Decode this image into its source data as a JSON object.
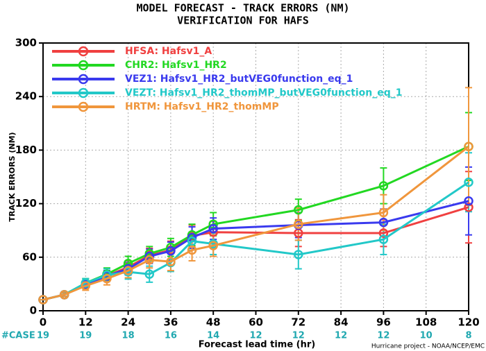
{
  "chart_data": {
    "type": "line",
    "title": "MODEL FORECAST - TRACK ERRORS (NM)",
    "subtitle": "VERIFICATION FOR HAFS",
    "x_label": "Forecast lead time (hr)",
    "y_label": "TRACK ERRORS (NM)",
    "footer": "Hurricane project - NOAA/NCEP/EMC",
    "x": [
      0,
      6,
      12,
      18,
      24,
      30,
      36,
      42,
      48,
      72,
      96,
      120
    ],
    "xlim": [
      0,
      120
    ],
    "xticks": [
      0,
      12,
      24,
      36,
      48,
      60,
      72,
      84,
      96,
      108,
      120
    ],
    "ylim": [
      0,
      300
    ],
    "yticks": [
      0,
      60,
      120,
      180,
      240,
      300
    ],
    "grid": true,
    "legend": "upper left",
    "cases": {
      "label": "#CASE",
      "color": "#20a8b0",
      "x": [
        0,
        12,
        24,
        36,
        48,
        60,
        72,
        84,
        96,
        108,
        120
      ],
      "values": [
        19,
        19,
        18,
        16,
        14,
        12,
        12,
        12,
        12,
        10,
        8
      ]
    },
    "series": [
      {
        "name": "HFSA: Hafsv1_A",
        "color": "#f04040",
        "values": [
          12.4,
          18,
          29.5,
          39,
          49,
          62,
          68,
          84,
          88,
          87,
          87,
          116
        ],
        "errors": [
          0,
          2,
          4,
          6,
          7,
          8,
          10,
          12,
          12,
          15,
          15,
          40
        ]
      },
      {
        "name": "CHR2: Hafsv1_HR2",
        "color": "#22d822",
        "values": [
          12.4,
          18,
          31,
          41,
          53,
          64,
          71,
          85,
          97,
          113,
          140,
          184
        ],
        "errors": [
          0,
          2,
          5,
          7,
          8,
          8,
          10,
          12,
          13,
          12,
          20,
          38
        ]
      },
      {
        "name": "VEZ1: Hafsv1_HR2_butVEG0function_eq_1",
        "color": "#3a3aee",
        "values": [
          12.4,
          18,
          29.5,
          39,
          47,
          61,
          67,
          82,
          92,
          96,
          99,
          123
        ],
        "errors": [
          0,
          2,
          4,
          6,
          7,
          8,
          10,
          12,
          12,
          14,
          15,
          38
        ]
      },
      {
        "name": "VEZT: Hafsv1_HR2_thomMP_butVEG0function_eq_1",
        "color": "#22c8c8",
        "values": [
          12.4,
          18,
          31,
          40,
          43.5,
          41,
          54,
          78,
          75,
          63,
          80,
          144
        ],
        "errors": [
          0,
          2,
          5,
          7,
          8,
          9,
          10,
          10,
          12,
          16,
          17,
          33
        ]
      },
      {
        "name": "HRTM: Hafsv1_HR2_thomMP",
        "color": "#f0963c",
        "values": [
          12.4,
          18,
          28,
          36,
          45,
          57,
          55,
          68,
          73,
          97,
          110,
          184
        ],
        "errors": [
          0,
          2,
          5,
          7,
          8,
          9,
          10,
          12,
          12,
          18,
          20,
          66
        ]
      }
    ]
  }
}
